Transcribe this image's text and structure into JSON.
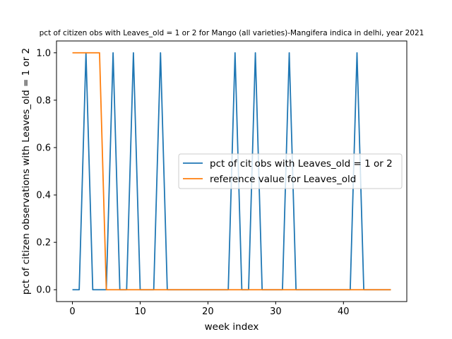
{
  "chart_data": {
    "type": "line",
    "title": "pct of citizen obs with Leaves_old = 1 or 2 for Mango (all varieties)-Mangifera indica in delhi, year 2021",
    "xlabel": "week index",
    "ylabel": "pct of citizen observations with Leaves_old = 1 or 2",
    "xlim": [
      -2.35,
      49.35
    ],
    "ylim": [
      -0.05,
      1.05
    ],
    "xticks": [
      0,
      10,
      20,
      30,
      40
    ],
    "yticks": [
      0.0,
      0.2,
      0.4,
      0.6,
      0.8,
      1.0
    ],
    "xtick_labels": [
      "0",
      "10",
      "20",
      "30",
      "40"
    ],
    "ytick_labels": [
      "0.0",
      "0.2",
      "0.4",
      "0.6",
      "0.8",
      "1.0"
    ],
    "legend_position": "center-right",
    "grid": false,
    "series": [
      {
        "name": "pct of cit obs with Leaves_old = 1 or 2",
        "color": "#1f77b4",
        "x": [
          0,
          1,
          2,
          3,
          4,
          5,
          6,
          7,
          8,
          9,
          10,
          11,
          12,
          13,
          14,
          15,
          16,
          17,
          18,
          19,
          20,
          21,
          22,
          23,
          24,
          25,
          26,
          27,
          28,
          29,
          30,
          31,
          32,
          33,
          34,
          35,
          36,
          37,
          38,
          39,
          40,
          41,
          42,
          43,
          44,
          45,
          46,
          47
        ],
        "values": [
          0,
          0,
          1,
          0,
          0,
          0,
          1,
          0,
          0,
          1,
          0,
          0,
          0,
          1,
          0,
          0,
          0,
          0,
          0,
          0,
          0,
          0,
          0,
          0,
          1,
          0,
          0,
          1,
          0,
          0,
          0,
          0,
          1,
          0,
          0,
          0,
          0,
          0,
          0,
          0,
          0,
          0,
          1,
          0,
          0,
          0,
          0,
          0
        ]
      },
      {
        "name": "reference value for Leaves_old",
        "color": "#ff7f0e",
        "x": [
          0,
          1,
          2,
          3,
          4,
          5,
          6,
          7,
          8,
          9,
          10,
          11,
          12,
          13,
          14,
          15,
          16,
          17,
          18,
          19,
          20,
          21,
          22,
          23,
          24,
          25,
          26,
          27,
          28,
          29,
          30,
          31,
          32,
          33,
          34,
          35,
          36,
          37,
          38,
          39,
          40,
          41,
          42,
          43,
          44,
          45,
          46,
          47
        ],
        "values": [
          1,
          1,
          1,
          1,
          1,
          0,
          0,
          0,
          0,
          0,
          0,
          0,
          0,
          0,
          0,
          0,
          0,
          0,
          0,
          0,
          0,
          0,
          0,
          0,
          0,
          0,
          0,
          0,
          0,
          0,
          0,
          0,
          0,
          0,
          0,
          0,
          0,
          0,
          0,
          0,
          0,
          0,
          0,
          0,
          0,
          0,
          0,
          0
        ]
      }
    ]
  }
}
